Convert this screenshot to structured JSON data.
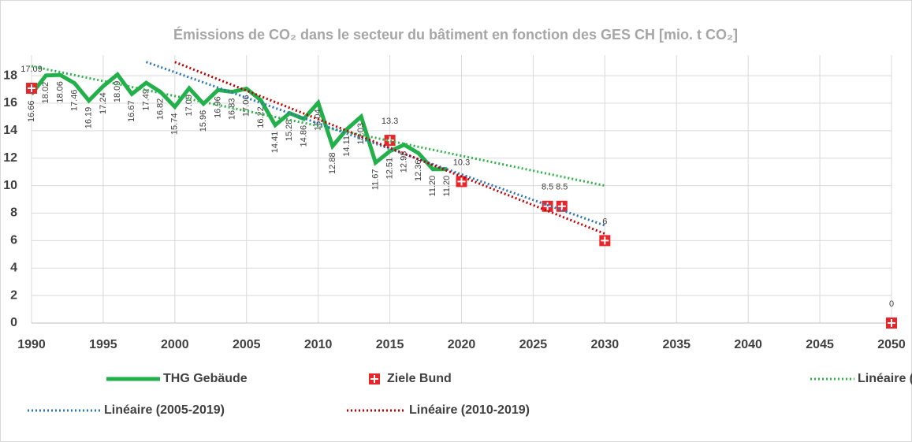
{
  "chart_data": {
    "type": "line",
    "title": "Émissions de CO₂ dans le secteur du bâtiment en fonction des GES CH [mio. t CO₂]",
    "xlim": [
      1990,
      2050
    ],
    "xticks": [
      1990,
      1995,
      2000,
      2005,
      2010,
      2015,
      2020,
      2025,
      2030,
      2035,
      2040,
      2045,
      2050
    ],
    "ylim": [
      0,
      19.5
    ],
    "yticks": [
      0,
      2,
      4,
      6,
      8,
      10,
      12,
      14,
      16,
      18
    ],
    "grid": true,
    "legend": "bottom",
    "series": [
      {
        "name": "THG Gebäude",
        "color": "#22b04b",
        "style": "line",
        "x": [
          1990,
          1991,
          1992,
          1993,
          1994,
          1995,
          1996,
          1997,
          1998,
          1999,
          2000,
          2001,
          2002,
          2003,
          2004,
          2005,
          2006,
          2007,
          2008,
          2009,
          2010,
          2011,
          2012,
          2013,
          2014,
          2015,
          2016,
          2017,
          2018,
          2019
        ],
        "values": [
          16.66,
          18.02,
          18.06,
          17.46,
          16.19,
          17.24,
          18.09,
          16.67,
          17.49,
          16.82,
          15.74,
          17.09,
          15.96,
          16.96,
          16.83,
          17.06,
          16.22,
          14.41,
          15.28,
          14.86,
          16.04,
          12.88,
          14.11,
          15.03,
          11.67,
          12.51,
          12.98,
          12.36,
          11.2,
          11.2
        ],
        "value_labels": [
          "16.66",
          "18.02",
          "18.06",
          "17.46",
          "16.19",
          "17.24",
          "18.09",
          "16.67",
          "17.49",
          "16.82",
          "15.74",
          "17.09",
          "15.96",
          "16.96",
          "16.83",
          "17.06",
          "16.22",
          "14.41",
          "15.28",
          "14.86",
          "16.04",
          "12.88",
          "14.11",
          "15.03",
          "11.67",
          "12.51",
          "12.98",
          "12.36",
          "11.20",
          "11.20"
        ]
      },
      {
        "name": "Ziele Bund",
        "color": "#e8262a",
        "style": "marker",
        "x": [
          1990,
          2015,
          2020,
          2026,
          2027,
          2030,
          2050
        ],
        "values": [
          17.09,
          13.3,
          10.3,
          8.5,
          8.5,
          6,
          0
        ]
      },
      {
        "name": "Linéaire (THG Gebäude)",
        "color": "#2db34a",
        "style": "dotted",
        "x": [
          1990,
          2030
        ],
        "values": [
          18.7,
          10.0
        ]
      },
      {
        "name": "Linéaire (2005-2019)",
        "color": "#2e75b6",
        "style": "dotted",
        "x": [
          1998,
          2030
        ],
        "values": [
          19.0,
          7.1
        ]
      },
      {
        "name": "Linéaire (2010-2019)",
        "color": "#c00000",
        "style": "dotted",
        "x": [
          2000,
          2030
        ],
        "values": [
          19.0,
          6.5
        ]
      }
    ]
  }
}
